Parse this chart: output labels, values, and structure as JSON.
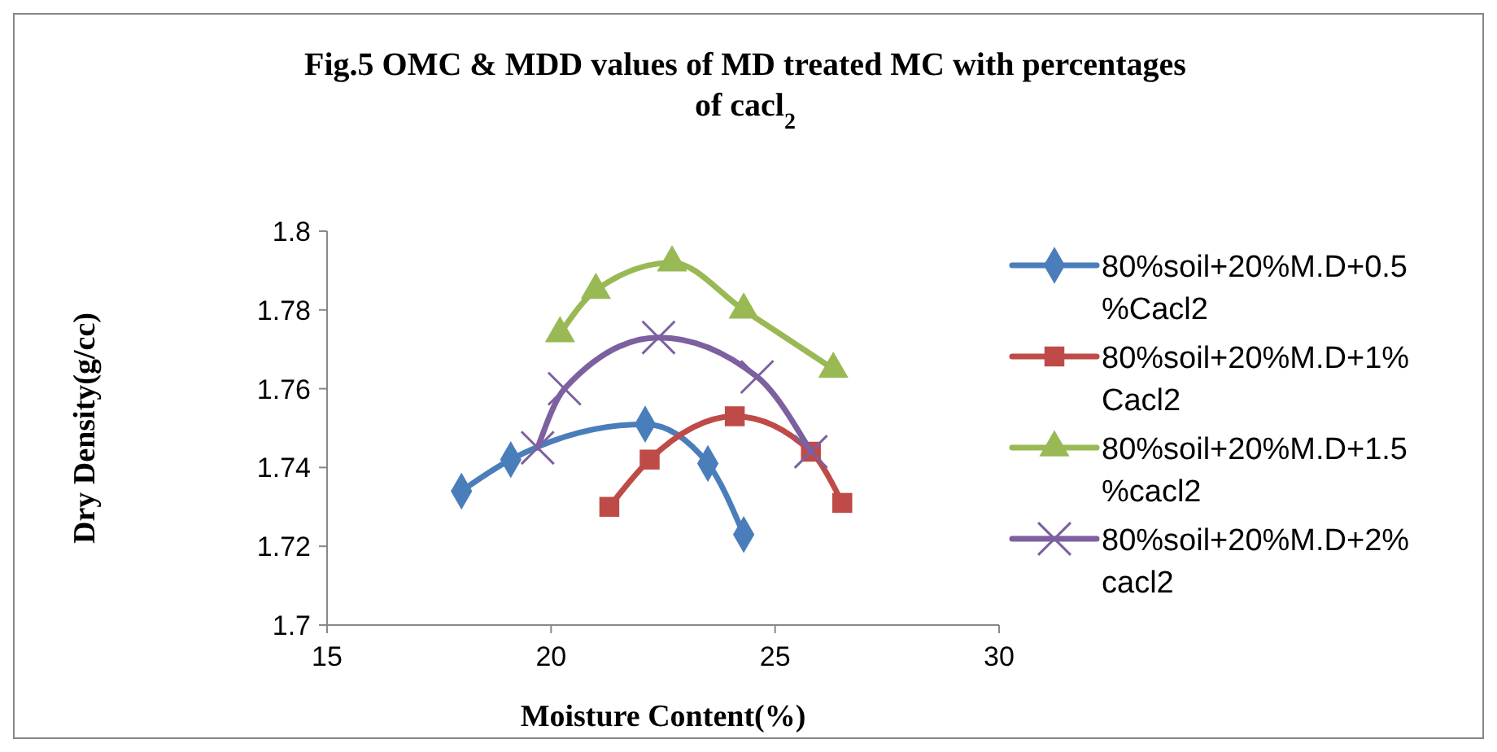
{
  "chart_data": {
    "type": "line",
    "title": "Fig.5 OMC & MDD values of MD treated MC with percentages of cacl$_{2}$",
    "xlabel": "Moisture Content(%)",
    "ylabel": "Dry Density(g/cc)",
    "xlim": [
      15,
      30
    ],
    "xticks": [
      15,
      20,
      25,
      30
    ],
    "ylim": [
      1.7,
      1.8
    ],
    "yticks": [
      {
        "value": 1.7,
        "label": "1.7"
      },
      1.72,
      1.74,
      1.76,
      1.78,
      {
        "value": 1.8,
        "label": "1.8"
      }
    ],
    "grid": false,
    "legend": "right",
    "series": [
      {
        "name": "80%soil+20%M.D+0.5%Cacl2",
        "color": "#4a7ebb",
        "marker": "diamond",
        "x": [
          18.0,
          19.1,
          22.1,
          23.5,
          24.3
        ],
        "values": [
          1.734,
          1.742,
          1.751,
          1.741,
          1.723
        ]
      },
      {
        "name": "80%soil+20%M.D+1% Cacl2",
        "color": "#be4b48",
        "marker": "square",
        "x": [
          21.3,
          22.2,
          24.1,
          25.8,
          26.5
        ],
        "values": [
          1.73,
          1.742,
          1.753,
          1.744,
          1.731
        ]
      },
      {
        "name": "80%soil+20%M.D+1.5%cacl2",
        "color": "#98b954",
        "marker": "triangle",
        "x": [
          20.2,
          21.0,
          22.7,
          24.3,
          26.3
        ],
        "values": [
          1.774,
          1.785,
          1.792,
          1.78,
          1.765
        ]
      },
      {
        "name": "80%soil+20%M.D+2% cacl2",
        "color": "#7d60a0",
        "marker": "cross",
        "x": [
          19.7,
          20.3,
          22.4,
          24.6,
          25.8
        ],
        "values": [
          1.745,
          1.76,
          1.773,
          1.763,
          1.744
        ]
      }
    ]
  }
}
